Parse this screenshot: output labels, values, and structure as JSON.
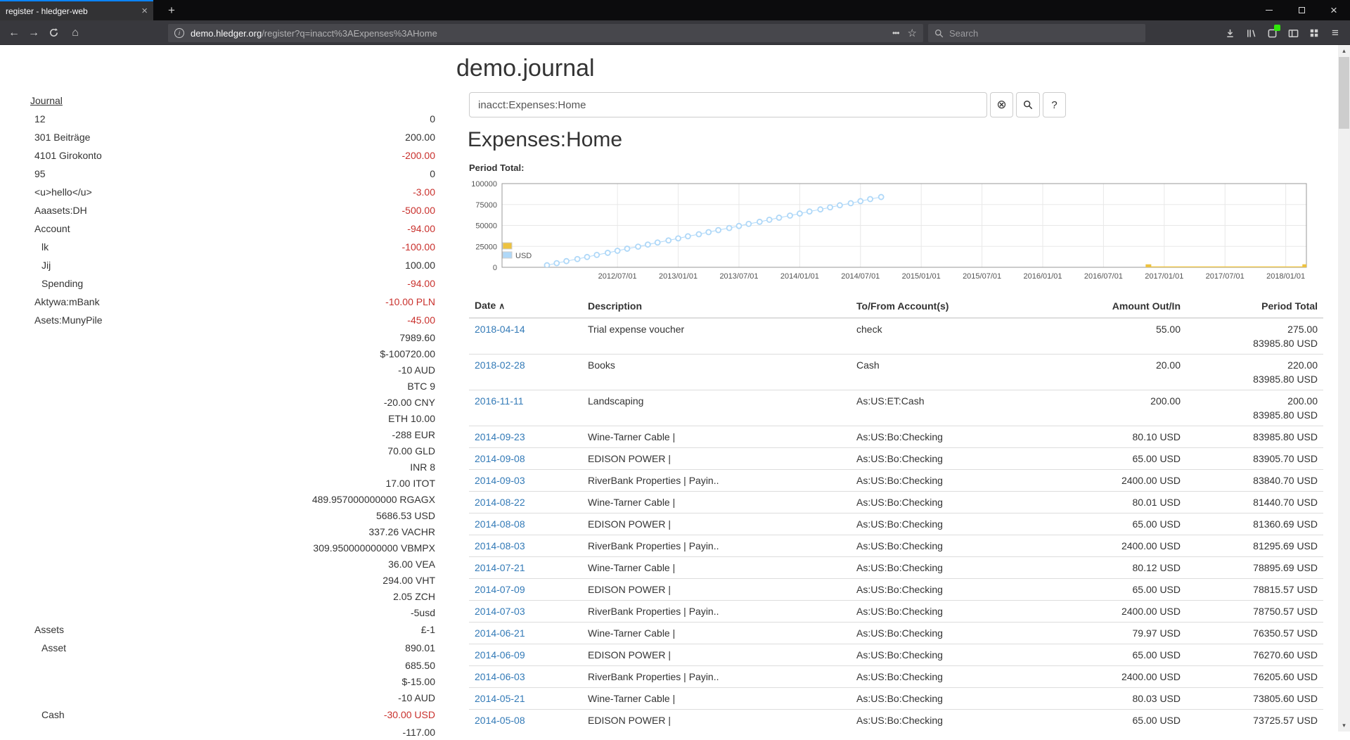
{
  "browser": {
    "tab_title": "register - hledger-web",
    "url_domain": "demo.hledger.org",
    "url_path": "/register?q=inacct%3AExpenses%3AHome",
    "search_placeholder": "Search"
  },
  "page": {
    "title": "demo.journal",
    "heading": "Expenses:Home",
    "period_total_label": "Period Total:",
    "search": {
      "value": "inacct:Expenses:Home",
      "clear_label": "⊗",
      "help_label": "?"
    }
  },
  "sidebar": {
    "title": "Journal",
    "items": [
      {
        "name": "12",
        "indent": 1,
        "amounts": [
          {
            "t": "0",
            "neg": false
          }
        ]
      },
      {
        "name": "301 Beiträge",
        "indent": 1,
        "amounts": [
          {
            "t": "200.00",
            "neg": false
          }
        ]
      },
      {
        "name": "4101 Girokonto",
        "indent": 1,
        "amounts": [
          {
            "t": "-200.00",
            "neg": true
          }
        ]
      },
      {
        "name": "95",
        "indent": 1,
        "amounts": [
          {
            "t": "0",
            "neg": false
          }
        ]
      },
      {
        "name": "<u>hello</u>",
        "indent": 1,
        "amounts": [
          {
            "t": "-3.00",
            "neg": true
          }
        ]
      },
      {
        "name": "Aaasets:DH",
        "indent": 1,
        "amounts": [
          {
            "t": "-500.00",
            "neg": true
          }
        ]
      },
      {
        "name": "Account",
        "indent": 1,
        "amounts": [
          {
            "t": "-94.00",
            "neg": true
          }
        ]
      },
      {
        "name": "lk",
        "indent": 2,
        "amounts": [
          {
            "t": "-100.00",
            "neg": true
          }
        ]
      },
      {
        "name": "Jij",
        "indent": 2,
        "amounts": [
          {
            "t": "100.00",
            "neg": false
          }
        ]
      },
      {
        "name": "Spending",
        "indent": 2,
        "amounts": [
          {
            "t": "-94.00",
            "neg": true
          }
        ]
      },
      {
        "name": "Aktywa:mBank",
        "indent": 1,
        "amounts": [
          {
            "t": "-10.00 PLN",
            "neg": true
          }
        ]
      },
      {
        "name": "Asets:MunyPile",
        "indent": 1,
        "amounts": [
          {
            "t": "-45.00",
            "neg": true
          },
          {
            "t": "7989.60",
            "neg": false
          },
          {
            "t": "$-100720.00",
            "neg": false
          },
          {
            "t": "-10 AUD",
            "neg": false
          },
          {
            "t": "BTC 9",
            "neg": false
          },
          {
            "t": "-20.00 CNY",
            "neg": false
          },
          {
            "t": "ETH 10.00",
            "neg": false
          },
          {
            "t": "-288 EUR",
            "neg": false
          },
          {
            "t": "70.00 GLD",
            "neg": false
          },
          {
            "t": "INR 8",
            "neg": false
          },
          {
            "t": "17.00 ITOT",
            "neg": false
          },
          {
            "t": "489.957000000000 RGAGX",
            "neg": false
          },
          {
            "t": "5686.53 USD",
            "neg": false
          },
          {
            "t": "337.26 VACHR",
            "neg": false
          },
          {
            "t": "309.950000000000 VBMPX",
            "neg": false
          },
          {
            "t": "36.00 VEA",
            "neg": false
          },
          {
            "t": "294.00 VHT",
            "neg": false
          },
          {
            "t": "2.05 ZCH",
            "neg": false
          },
          {
            "t": "-5usd",
            "neg": false
          }
        ]
      },
      {
        "name": "Assets",
        "indent": 1,
        "amounts": [
          {
            "t": "£-1",
            "neg": false
          }
        ]
      },
      {
        "name": "Asset",
        "indent": 2,
        "amounts": [
          {
            "t": "890.01",
            "neg": false
          },
          {
            "t": "685.50",
            "neg": false
          },
          {
            "t": "$-15.00",
            "neg": false
          },
          {
            "t": "-10 AUD",
            "neg": false
          }
        ]
      },
      {
        "name": "Cash",
        "indent": 2,
        "amounts": [
          {
            "t": "-30.00 USD",
            "neg": true
          },
          {
            "t": "-117.00",
            "neg": false
          }
        ]
      }
    ]
  },
  "register": {
    "columns": [
      "Date",
      "Description",
      "To/From Account(s)",
      "Amount Out/In",
      "Period Total"
    ],
    "sort_icon": "∧",
    "rows": [
      {
        "date": "2018-04-14",
        "desc": "Trial expense voucher",
        "acct": "check",
        "amount": "55.00",
        "totals": [
          "275.00",
          "83985.80 USD"
        ]
      },
      {
        "date": "2018-02-28",
        "desc": "Books",
        "acct": "Cash",
        "amount": "20.00",
        "totals": [
          "220.00",
          "83985.80 USD"
        ]
      },
      {
        "date": "2016-11-11",
        "desc": "Landscaping",
        "acct": "As:US:ET:Cash",
        "amount": "200.00",
        "totals": [
          "200.00",
          "83985.80 USD"
        ]
      },
      {
        "date": "2014-09-23",
        "desc": "Wine-Tarner Cable |",
        "acct": "As:US:Bo:Checking",
        "amount": "80.10 USD",
        "totals": [
          "83985.80 USD"
        ]
      },
      {
        "date": "2014-09-08",
        "desc": "EDISON POWER |",
        "acct": "As:US:Bo:Checking",
        "amount": "65.00 USD",
        "totals": [
          "83905.70 USD"
        ]
      },
      {
        "date": "2014-09-03",
        "desc": "RiverBank Properties | Payin..",
        "acct": "As:US:Bo:Checking",
        "amount": "2400.00 USD",
        "totals": [
          "83840.70 USD"
        ]
      },
      {
        "date": "2014-08-22",
        "desc": "Wine-Tarner Cable |",
        "acct": "As:US:Bo:Checking",
        "amount": "80.01 USD",
        "totals": [
          "81440.70 USD"
        ]
      },
      {
        "date": "2014-08-08",
        "desc": "EDISON POWER |",
        "acct": "As:US:Bo:Checking",
        "amount": "65.00 USD",
        "totals": [
          "81360.69 USD"
        ]
      },
      {
        "date": "2014-08-03",
        "desc": "RiverBank Properties | Payin..",
        "acct": "As:US:Bo:Checking",
        "amount": "2400.00 USD",
        "totals": [
          "81295.69 USD"
        ]
      },
      {
        "date": "2014-07-21",
        "desc": "Wine-Tarner Cable |",
        "acct": "As:US:Bo:Checking",
        "amount": "80.12 USD",
        "totals": [
          "78895.69 USD"
        ]
      },
      {
        "date": "2014-07-09",
        "desc": "EDISON POWER |",
        "acct": "As:US:Bo:Checking",
        "amount": "65.00 USD",
        "totals": [
          "78815.57 USD"
        ]
      },
      {
        "date": "2014-07-03",
        "desc": "RiverBank Properties | Payin..",
        "acct": "As:US:Bo:Checking",
        "amount": "2400.00 USD",
        "totals": [
          "78750.57 USD"
        ]
      },
      {
        "date": "2014-06-21",
        "desc": "Wine-Tarner Cable |",
        "acct": "As:US:Bo:Checking",
        "amount": "79.97 USD",
        "totals": [
          "76350.57 USD"
        ]
      },
      {
        "date": "2014-06-09",
        "desc": "EDISON POWER |",
        "acct": "As:US:Bo:Checking",
        "amount": "65.00 USD",
        "totals": [
          "76270.60 USD"
        ]
      },
      {
        "date": "2014-06-03",
        "desc": "RiverBank Properties | Payin..",
        "acct": "As:US:Bo:Checking",
        "amount": "2400.00 USD",
        "totals": [
          "76205.60 USD"
        ]
      },
      {
        "date": "2014-05-21",
        "desc": "Wine-Tarner Cable |",
        "acct": "As:US:Bo:Checking",
        "amount": "80.03 USD",
        "totals": [
          "73805.60 USD"
        ]
      },
      {
        "date": "2014-05-08",
        "desc": "EDISON POWER |",
        "acct": "As:US:Bo:Checking",
        "amount": "65.00 USD",
        "totals": [
          "73725.57 USD"
        ]
      }
    ]
  },
  "chart_data": {
    "type": "line",
    "title": "Period Total:",
    "xlabel": "",
    "ylabel": "",
    "x_range": [
      2011.55,
      2018.17
    ],
    "ylim": [
      0,
      100000
    ],
    "y_ticks": [
      0,
      25000,
      50000,
      75000,
      100000
    ],
    "x_ticks": [
      {
        "v": 2012.5,
        "label": "2012/07/01"
      },
      {
        "v": 2013,
        "label": "2013/01/01"
      },
      {
        "v": 2013.5,
        "label": "2013/07/01"
      },
      {
        "v": 2014,
        "label": "2014/01/01"
      },
      {
        "v": 2014.5,
        "label": "2014/07/01"
      },
      {
        "v": 2015,
        "label": "2015/01/01"
      },
      {
        "v": 2015.5,
        "label": "2015/07/01"
      },
      {
        "v": 2016,
        "label": "2016/01/01"
      },
      {
        "v": 2016.5,
        "label": "2016/07/01"
      },
      {
        "v": 2017,
        "label": "2017/01/01"
      },
      {
        "v": 2017.5,
        "label": "2017/07/01"
      },
      {
        "v": 2018,
        "label": "2018/01/01"
      }
    ],
    "legend_position": "bottom-left",
    "series": [
      {
        "label": "",
        "color": "#edc240",
        "marker": "square",
        "line_width": 2,
        "points": [
          [
            2016.87,
            200
          ],
          [
            2018.16,
            220
          ],
          [
            2018.29,
            275
          ]
        ]
      },
      {
        "label": "USD",
        "color": "#afd8f8",
        "marker": "circle",
        "line_width": 1,
        "points": [
          [
            2011.92,
            2470
          ],
          [
            2012.0,
            4940
          ],
          [
            2012.08,
            7410
          ],
          [
            2012.17,
            9881
          ],
          [
            2012.25,
            12351
          ],
          [
            2012.33,
            14821
          ],
          [
            2012.42,
            17291
          ],
          [
            2012.5,
            19761
          ],
          [
            2012.58,
            22232
          ],
          [
            2012.67,
            24702
          ],
          [
            2012.75,
            27172
          ],
          [
            2012.83,
            29642
          ],
          [
            2012.92,
            32112
          ],
          [
            2013.0,
            34582
          ],
          [
            2013.08,
            37053
          ],
          [
            2013.17,
            39523
          ],
          [
            2013.25,
            41993
          ],
          [
            2013.33,
            44463
          ],
          [
            2013.42,
            46933
          ],
          [
            2013.5,
            49403
          ],
          [
            2013.58,
            51874
          ],
          [
            2013.67,
            54344
          ],
          [
            2013.75,
            56814
          ],
          [
            2013.83,
            59284
          ],
          [
            2013.92,
            61754
          ],
          [
            2014.0,
            64224
          ],
          [
            2014.08,
            66695
          ],
          [
            2014.17,
            69165
          ],
          [
            2014.25,
            71635
          ],
          [
            2014.33,
            74105
          ],
          [
            2014.42,
            76575
          ],
          [
            2014.5,
            79046
          ],
          [
            2014.58,
            81516
          ],
          [
            2014.67,
            83986
          ]
        ]
      }
    ]
  }
}
